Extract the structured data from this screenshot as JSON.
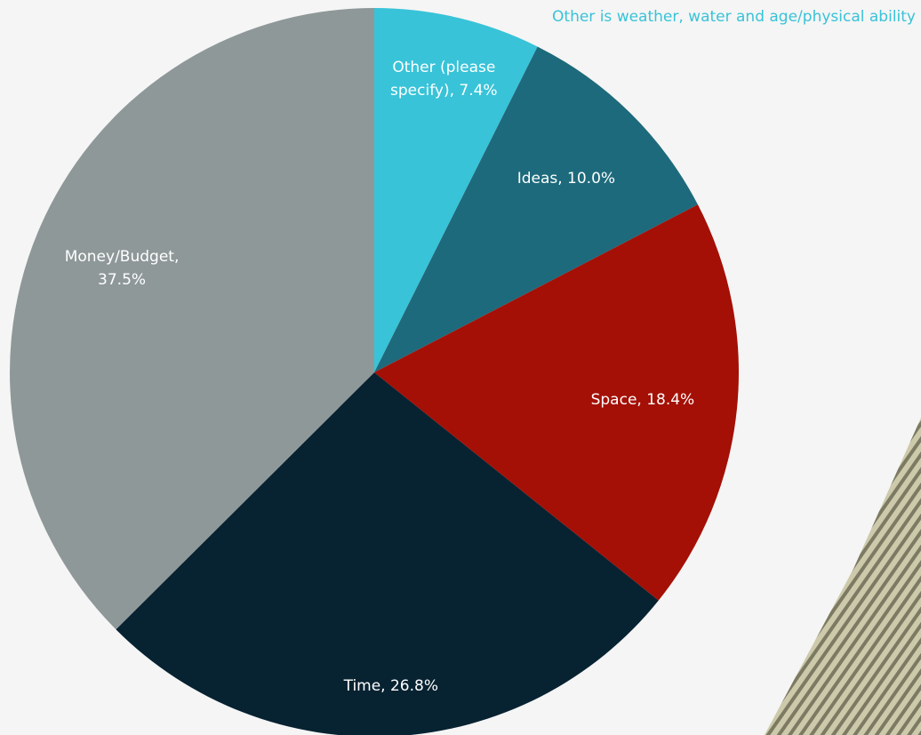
{
  "note": "Other is weather, water and age/physical ability",
  "colors": {
    "background": "#f5f5f5",
    "note_text": "#38c3d8",
    "label_text": "#ffffff"
  },
  "chart_data": {
    "type": "pie",
    "start_angle_deg": 0,
    "direction": "clockwise",
    "slices": [
      {
        "label": "Other (please specify)",
        "value": 7.4,
        "display": [
          "Other (please",
          "specify), 7.4%"
        ],
        "color": "#38c3d8"
      },
      {
        "label": "Ideas",
        "value": 10.0,
        "display": [
          "Ideas, 10.0%"
        ],
        "color": "#1d6a7c"
      },
      {
        "label": "Space",
        "value": 18.4,
        "display": [
          "Space, 18.4%"
        ],
        "color": "#a41006"
      },
      {
        "label": "Time",
        "value": 26.8,
        "display": [
          "Time, 26.8%"
        ],
        "color": "#072231"
      },
      {
        "label": "Money/Budget",
        "value": 37.5,
        "display": [
          "Money/Budget,",
          "37.5%"
        ],
        "color": "#8f9899"
      }
    ]
  }
}
